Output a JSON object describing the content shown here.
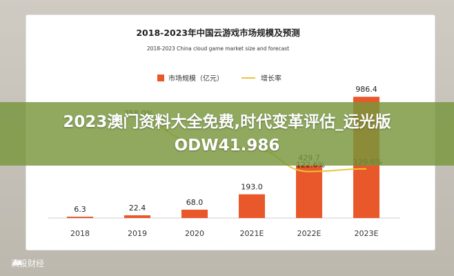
{
  "chart_data": {
    "type": "bar",
    "title": "2018-2023年中国云游戏市场规模及预测",
    "subtitle": "2018-2023 China cloud game market size and forecast",
    "categories": [
      "2018",
      "2019",
      "2020",
      "2021E",
      "2022E",
      "2023E"
    ],
    "series": [
      {
        "name": "市场规模（亿元）",
        "type": "bar",
        "values": [
          6.3,
          22.4,
          68.0,
          193.0,
          429.7,
          986.4
        ],
        "value_labels": [
          "6.3",
          "22.4",
          "68.0",
          "193.0",
          "429.7",
          "986.4"
        ]
      },
      {
        "name": "增长率",
        "type": "line",
        "values": [
          null,
          258.0,
          203.6,
          183.8,
          122.6,
          129.6
        ],
        "value_labels": [
          "",
          "258.0%",
          "",
          "",
          "122.6%",
          "129.6%"
        ]
      }
    ],
    "ylim": [
      0,
      1100
    ],
    "y2lim": [
      0,
      400
    ],
    "legend": "top",
    "grid": false,
    "colors": {
      "bar": "#e8582a",
      "line": "#e8c53a",
      "axis": "#cccccc"
    }
  },
  "banner": {
    "title": "2023澳门资料大全免费,时代变革评估_远光版ODW41.986"
  },
  "watermark": {
    "text": "满投财经"
  }
}
